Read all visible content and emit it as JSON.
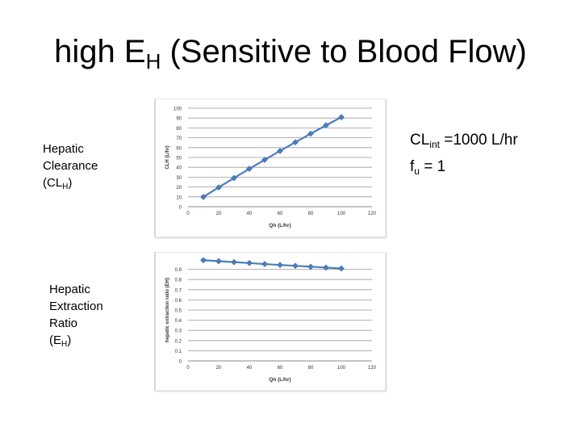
{
  "slide": {
    "title_main": "high E",
    "title_sub": "H",
    "title_rest": " (Sensitive to Blood Flow)"
  },
  "labels": {
    "clearance": {
      "line1": "Hepatic",
      "line2": "Clearance",
      "line3_pre": "(CL",
      "line3_sub": "H",
      "line3_post": ")"
    },
    "extraction": {
      "line1": "Hepatic",
      "line2": "Extraction",
      "line3": "Ratio",
      "line4_pre": "(E",
      "line4_sub": "H",
      "line4_post": ")"
    }
  },
  "params": {
    "clint_pre": "CL",
    "clint_sub": "int",
    "clint_post": " =1000 L/hr",
    "fu_pre": "f",
    "fu_sub": "u",
    "fu_post": " = 1"
  },
  "chart_data": [
    {
      "type": "line",
      "xlabel": "Qh (L/hr)",
      "ylabel": "CLH (L/hr)",
      "xlim": [
        0,
        120
      ],
      "ylim": [
        0,
        100
      ],
      "xticks": [
        0,
        20,
        40,
        60,
        80,
        100,
        120
      ],
      "yticks": [
        0,
        10,
        20,
        30,
        40,
        50,
        60,
        70,
        80,
        90,
        100
      ],
      "grid": true,
      "color": "#4a7ebb",
      "x": [
        10,
        20,
        30,
        40,
        50,
        60,
        70,
        80,
        90,
        100
      ],
      "y": [
        9.9,
        19.6,
        29.1,
        38.5,
        47.6,
        56.6,
        65.4,
        74.1,
        82.6,
        90.9
      ]
    },
    {
      "type": "line",
      "xlabel": "Qh (L/hr)",
      "ylabel": "hepatic extraction ratio (EH)",
      "xlim": [
        0,
        120
      ],
      "ylim": [
        0,
        1
      ],
      "xticks": [
        0,
        20,
        40,
        60,
        80,
        100,
        120
      ],
      "yticks": [
        0,
        0.1,
        0.2,
        0.3,
        0.4,
        0.5,
        0.6,
        0.7,
        0.8,
        0.9
      ],
      "grid": true,
      "color": "#4a7ebb",
      "x": [
        10,
        20,
        30,
        40,
        50,
        60,
        70,
        80,
        90,
        100
      ],
      "y": [
        0.99,
        0.98,
        0.971,
        0.962,
        0.952,
        0.943,
        0.935,
        0.926,
        0.917,
        0.909
      ]
    }
  ]
}
